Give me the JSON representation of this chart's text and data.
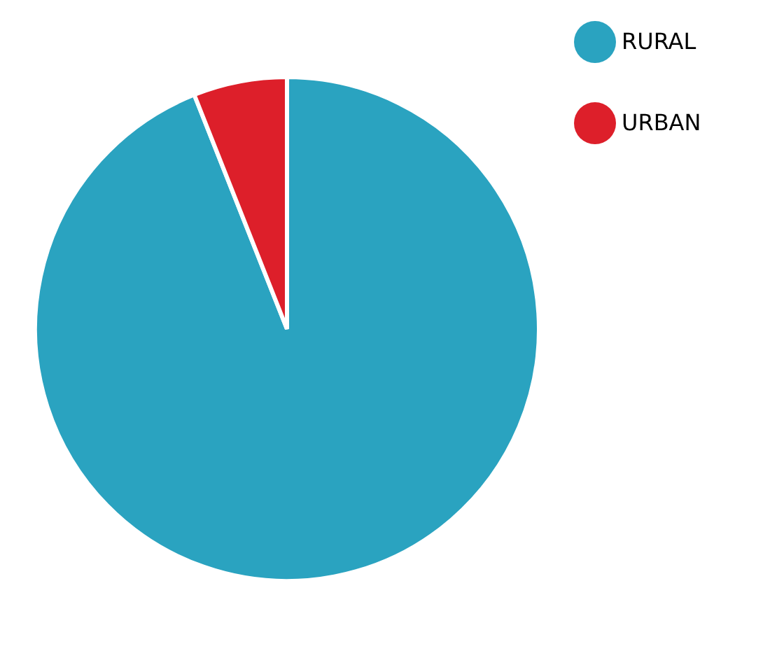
{
  "chart_data": {
    "type": "pie",
    "categories": [
      "RURAL",
      "URBAN"
    ],
    "values": [
      94,
      6
    ],
    "colors": [
      "#2aa3c0",
      "#dd1f2a"
    ],
    "legend": "right"
  }
}
